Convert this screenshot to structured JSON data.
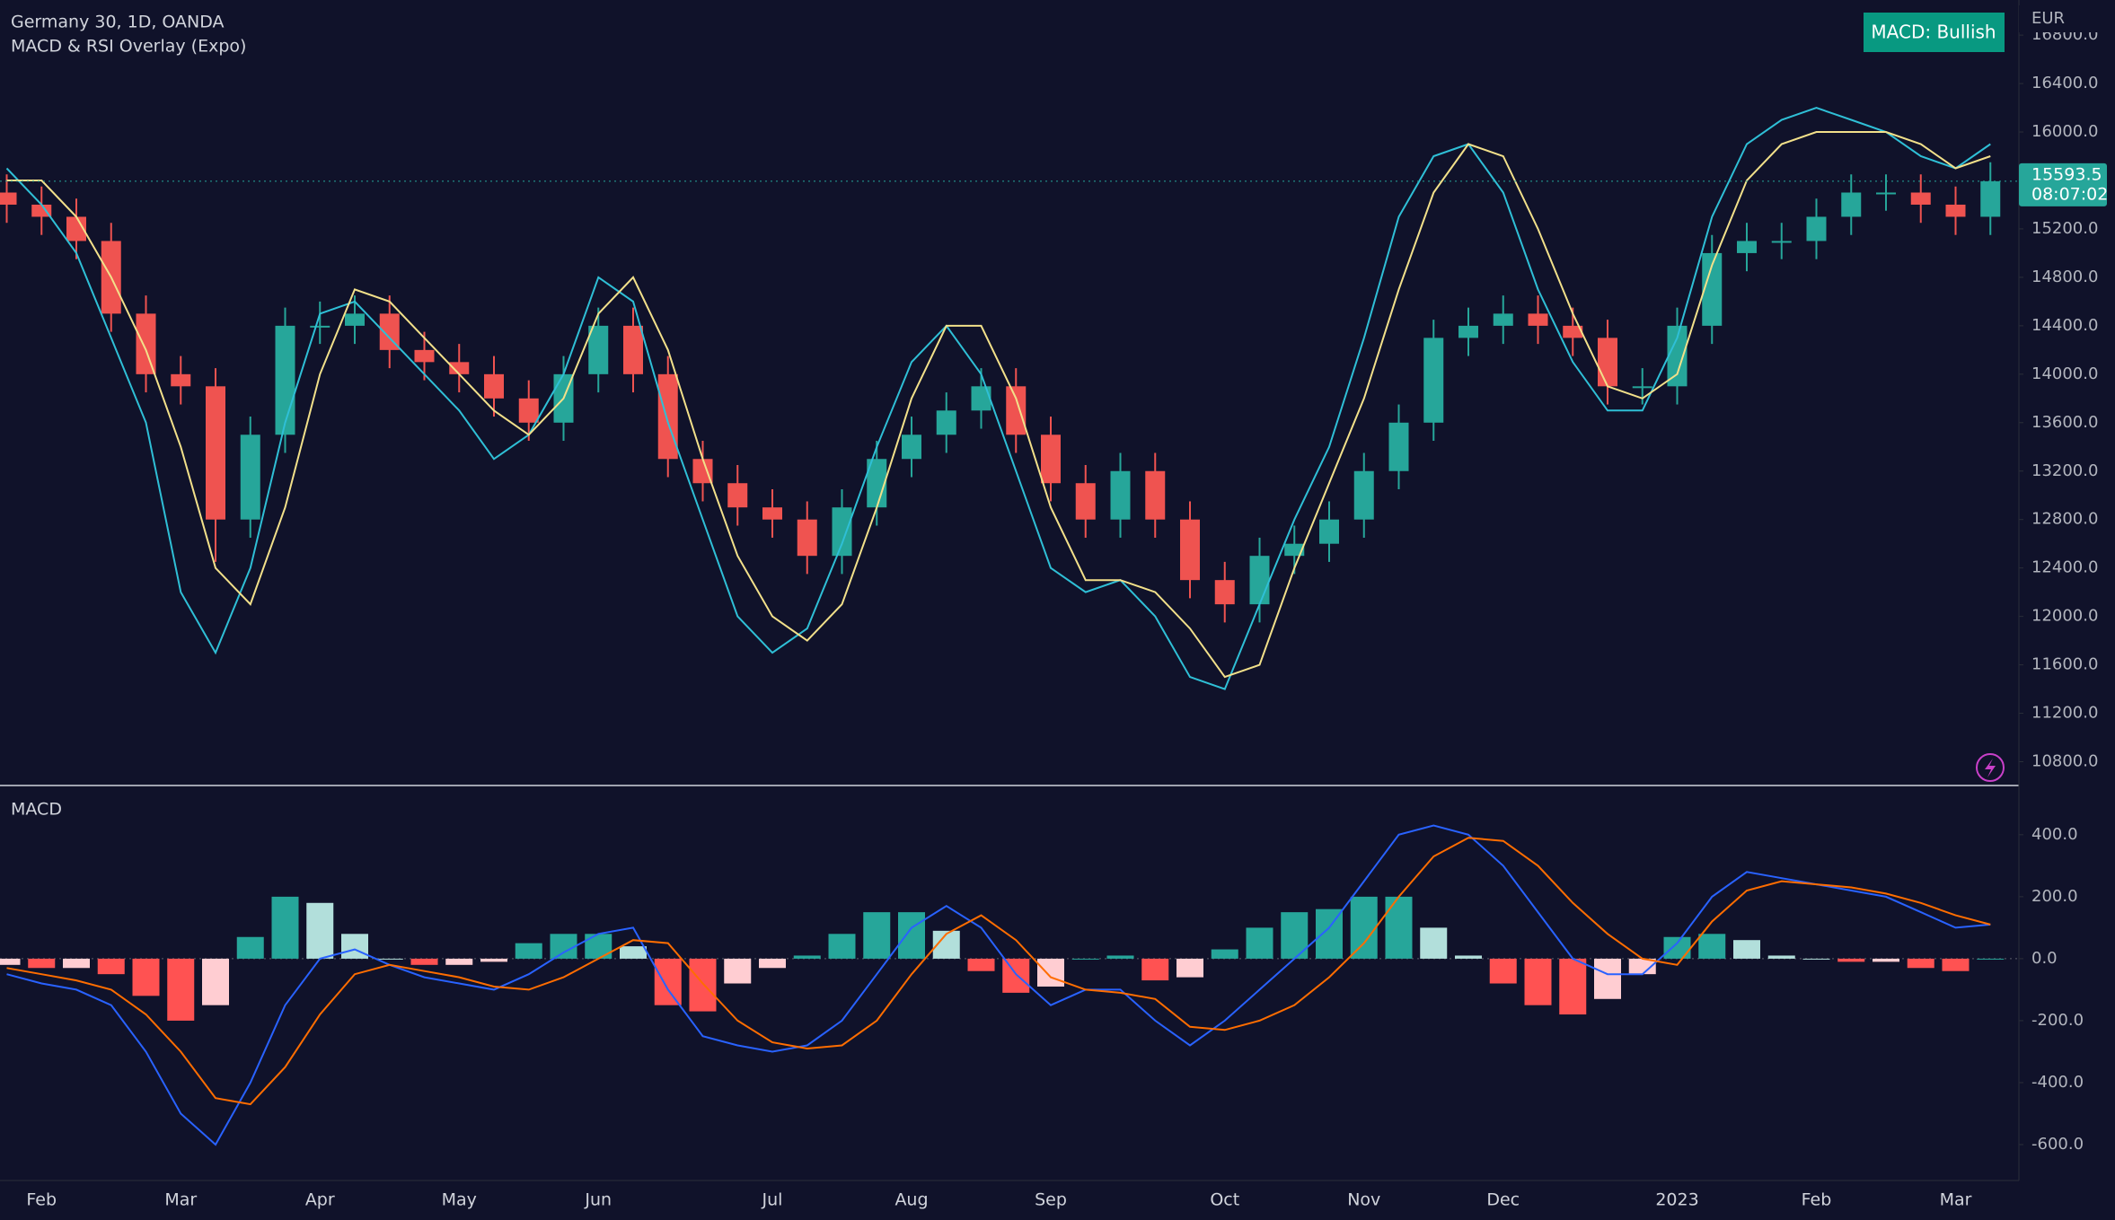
{
  "header": {
    "title": "Germany 30, 1D, OANDA",
    "indicator": "MACD & RSI Overlay (Expo)",
    "status": "MACD: Bullish",
    "currency": "EUR",
    "countdown": "08:07:02"
  },
  "chart_data": [
    {
      "type": "candlestick",
      "categories": [
        null,
        "Feb",
        null,
        null,
        null,
        "Mar",
        null,
        null,
        null,
        "Apr",
        null,
        null,
        null,
        "May",
        null,
        null,
        null,
        "Jun",
        null,
        null,
        null,
        null,
        "Jul",
        null,
        null,
        null,
        "Aug",
        null,
        null,
        null,
        "Sep",
        null,
        null,
        null,
        null,
        "Oct",
        null,
        null,
        null,
        "Nov",
        null,
        null,
        null,
        "Dec",
        null,
        null,
        null,
        null,
        "2023",
        null,
        null,
        null,
        "Feb",
        null,
        null,
        null,
        "Mar",
        null
      ],
      "opens": [
        15500,
        15400,
        15300,
        15100,
        14500,
        14000,
        13900,
        12800,
        13500,
        14400,
        14400,
        14500,
        14200,
        14100,
        14000,
        13800,
        13600,
        14000,
        14400,
        14000,
        13300,
        13100,
        12900,
        12800,
        12500,
        12900,
        13300,
        13500,
        13700,
        13900,
        13500,
        13100,
        12800,
        13200,
        12800,
        12300,
        12100,
        12500,
        12600,
        12800,
        13200,
        13600,
        14300,
        14400,
        14500,
        14400,
        14300,
        13900,
        13900,
        14400,
        15000,
        15100,
        15100,
        15300,
        15500,
        15500,
        15400,
        15300
      ],
      "highs": [
        15650,
        15550,
        15450,
        15250,
        14650,
        14150,
        14050,
        13650,
        14550,
        14600,
        14650,
        14650,
        14350,
        14250,
        14150,
        13950,
        14150,
        14550,
        14550,
        14150,
        13450,
        13250,
        13050,
        12950,
        13050,
        13450,
        13650,
        13850,
        14050,
        14050,
        13650,
        13250,
        13350,
        13350,
        12950,
        12450,
        12650,
        12750,
        12950,
        13350,
        13750,
        14450,
        14550,
        14650,
        14650,
        14550,
        14450,
        14050,
        14550,
        15150,
        15250,
        15250,
        15450,
        15650,
        15650,
        15650,
        15550,
        15750
      ],
      "lows": [
        15250,
        15150,
        14950,
        14350,
        13850,
        13750,
        12450,
        12650,
        13350,
        14250,
        14250,
        14050,
        13950,
        13850,
        13650,
        13450,
        13450,
        13850,
        13850,
        13150,
        12950,
        12750,
        12650,
        12350,
        12350,
        12750,
        13150,
        13350,
        13550,
        13350,
        12950,
        12650,
        12650,
        12650,
        12150,
        11950,
        11950,
        12350,
        12450,
        12650,
        13050,
        13450,
        14150,
        14250,
        14250,
        14150,
        13750,
        13750,
        13750,
        14250,
        14850,
        14950,
        14950,
        15150,
        15350,
        15250,
        15150,
        15150
      ],
      "closes": [
        15400,
        15300,
        15100,
        14500,
        14000,
        13900,
        12800,
        13500,
        14400,
        14400,
        14500,
        14200,
        14100,
        14000,
        13800,
        13600,
        14000,
        14400,
        14000,
        13300,
        13100,
        12900,
        12800,
        12500,
        12900,
        13300,
        13500,
        13700,
        13900,
        13500,
        13100,
        12800,
        13200,
        12800,
        12300,
        12100,
        12500,
        12600,
        12800,
        13200,
        13600,
        14300,
        14400,
        14500,
        14400,
        14300,
        13900,
        13900,
        14400,
        15000,
        15100,
        15100,
        15300,
        15500,
        15500,
        15400,
        15300,
        15593.5
      ],
      "up_color": "#26a69a",
      "down_color": "#ef5350",
      "lines": [
        {
          "color": "#2fbfd6",
          "values": [
            15700,
            15400,
            15000,
            14300,
            13600,
            12200,
            11700,
            12400,
            13600,
            14500,
            14600,
            14300,
            14000,
            13700,
            13300,
            13500,
            14000,
            14800,
            14600,
            13600,
            12800,
            12000,
            11700,
            11900,
            12600,
            13400,
            14100,
            14400,
            14000,
            13200,
            12400,
            12200,
            12300,
            12000,
            11500,
            11400,
            12100,
            12800,
            13400,
            14300,
            15300,
            15800,
            15900,
            15500,
            14700,
            14100,
            13700,
            13700,
            14300,
            15300,
            15900,
            16100,
            16200,
            16100,
            16000,
            15800,
            15700,
            15900
          ]
        },
        {
          "color": "#f2e08a",
          "values": [
            15600,
            15600,
            15300,
            14800,
            14200,
            13400,
            12400,
            12100,
            12900,
            14000,
            14700,
            14600,
            14300,
            14000,
            13700,
            13500,
            13800,
            14500,
            14800,
            14200,
            13300,
            12500,
            12000,
            11800,
            12100,
            12900,
            13800,
            14400,
            14400,
            13800,
            12900,
            12300,
            12300,
            12200,
            11900,
            11500,
            11600,
            12400,
            13100,
            13800,
            14700,
            15500,
            15900,
            15800,
            15200,
            14500,
            13900,
            13800,
            14000,
            14900,
            15600,
            15900,
            16000,
            16000,
            16000,
            15900,
            15700,
            15800
          ]
        }
      ],
      "ylim": [
        10611,
        17090
      ],
      "yticks": [
        {
          "value": 10800,
          "label": "10800.0"
        },
        {
          "value": 11200,
          "label": "11200.0"
        },
        {
          "value": 11600,
          "label": "11600.0"
        },
        {
          "value": 12000,
          "label": "12000.0"
        },
        {
          "value": 12400,
          "label": "12400.0"
        },
        {
          "value": 12800,
          "label": "12800.0"
        },
        {
          "value": 13200,
          "label": "13200.0"
        },
        {
          "value": 13600,
          "label": "13600.0"
        },
        {
          "value": 14000,
          "label": "14000.0"
        },
        {
          "value": 14400,
          "label": "14400.0"
        },
        {
          "value": 14800,
          "label": "14800.0"
        },
        {
          "value": 15200,
          "label": "15200.0"
        },
        {
          "value": 15600,
          "label": "15600.0"
        },
        {
          "value": 16000,
          "label": "16000.0"
        },
        {
          "value": 16400,
          "label": "16400.0"
        },
        {
          "value": 16800,
          "label": "16800.0"
        }
      ],
      "grid": false
    },
    {
      "type": "macd",
      "title": "MACD",
      "macd": {
        "color": "#2962ff",
        "values": [
          -50,
          -80,
          -100,
          -150,
          -300,
          -500,
          -600,
          -400,
          -150,
          0,
          30,
          -20,
          -60,
          -80,
          -100,
          -50,
          20,
          80,
          100,
          -100,
          -250,
          -280,
          -300,
          -280,
          -200,
          -50,
          100,
          170,
          100,
          -50,
          -150,
          -100,
          -100,
          -200,
          -280,
          -200,
          -100,
          0,
          100,
          250,
          400,
          430,
          400,
          300,
          150,
          0,
          -50,
          -50,
          50,
          200,
          280,
          260,
          240,
          220,
          200,
          150,
          100,
          110
        ]
      },
      "signal": {
        "color": "#ff6d00",
        "values": [
          -30,
          -50,
          -70,
          -100,
          -180,
          -300,
          -450,
          -470,
          -350,
          -180,
          -50,
          -20,
          -40,
          -60,
          -90,
          -100,
          -60,
          0,
          60,
          50,
          -80,
          -200,
          -270,
          -290,
          -280,
          -200,
          -50,
          80,
          140,
          60,
          -60,
          -100,
          -110,
          -130,
          -220,
          -230,
          -200,
          -150,
          -60,
          50,
          200,
          330,
          390,
          380,
          300,
          180,
          80,
          0,
          -20,
          120,
          220,
          250,
          240,
          230,
          210,
          180,
          140,
          110
        ]
      },
      "histogram": [
        -20,
        -30,
        -30,
        -50,
        -120,
        -200,
        -150,
        70,
        200,
        180,
        80,
        0,
        -20,
        -20,
        -10,
        50,
        80,
        80,
        40,
        -150,
        -170,
        -80,
        -30,
        10,
        80,
        150,
        150,
        90,
        -40,
        -110,
        -90,
        0,
        10,
        -70,
        -60,
        30,
        100,
        150,
        160,
        200,
        200,
        100,
        10,
        -80,
        -150,
        -180,
        -130,
        -50,
        70,
        80,
        60,
        10,
        0,
        -10,
        -10,
        -30,
        -40,
        0
      ],
      "hist_colors": {
        "grow_above": "#26a69a",
        "fall_above": "#b2dfdb",
        "grow_below": "#ffcdd2",
        "fall_below": "#ff5252"
      },
      "ylim": [
        -713,
        556
      ],
      "yticks": [
        {
          "value": -600,
          "label": "-600.0"
        },
        {
          "value": -400,
          "label": "-400.0"
        },
        {
          "value": -200,
          "label": "-200.0"
        },
        {
          "value": 0,
          "label": "0.0"
        },
        {
          "value": 200,
          "label": "200.0"
        },
        {
          "value": 400,
          "label": "400.0"
        }
      ],
      "grid": false
    }
  ]
}
